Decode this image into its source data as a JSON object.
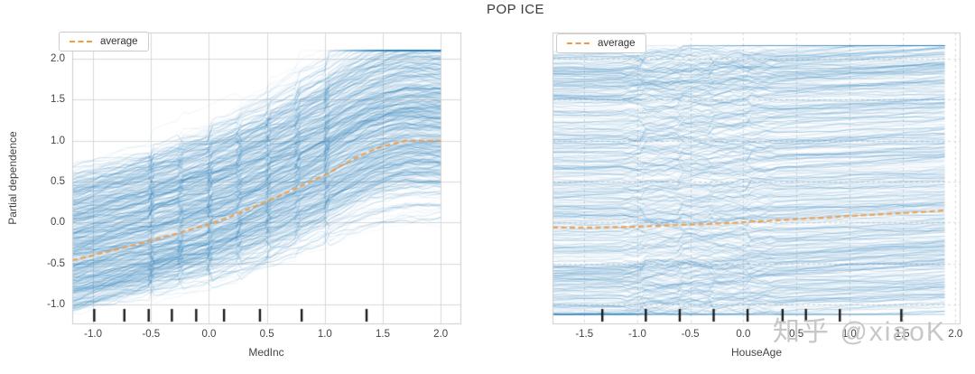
{
  "title": "POP ICE",
  "ylabel": "Partial dependence",
  "watermark": "知乎 @xiaoK",
  "colors": {
    "ice_line": "#1f77b4",
    "average_line": "#ef9c45",
    "grid": "#d9d9d9",
    "spine": "#cccccc",
    "rug": "#1a1a1a",
    "title_text": "#3a3a3a",
    "tick_text": "#444444",
    "watermark_text": "#c7c7c7"
  },
  "chart_data": [
    {
      "type": "line",
      "subtype": "ice-plot",
      "xlabel": "MedInc",
      "legend_label": "average",
      "xlim": [
        -1.18,
        2.17
      ],
      "ylim": [
        -1.23,
        2.32
      ],
      "xticks": [
        -1.0,
        -0.5,
        0.0,
        0.5,
        1.0,
        1.5,
        2.0
      ],
      "xtick_labels": [
        "-1.0",
        "-0.5",
        "0.0",
        "0.5",
        "1.0",
        "1.5",
        "2.0"
      ],
      "yticks": [
        -1.0,
        -0.5,
        0.0,
        0.5,
        1.0,
        1.5,
        2.0
      ],
      "ytick_labels": [
        "-1.0",
        "-0.5",
        "0.0",
        "0.5",
        "1.0",
        "1.5",
        "2.0"
      ],
      "grid_y": [
        -1.0,
        -0.5,
        0.0,
        0.5,
        1.0,
        1.5,
        2.0
      ],
      "grid_style": "solid",
      "n_ice_lines": 520,
      "seed": 7,
      "ice_x_range": [
        -1.18,
        2.0
      ],
      "ice_value_clamp": [
        -1.16,
        2.1
      ],
      "average_series": {
        "x": [
          -1.18,
          -1.0,
          -0.75,
          -0.5,
          -0.25,
          0.0,
          0.2,
          0.4,
          0.6,
          0.8,
          1.0,
          1.2,
          1.4,
          1.55,
          1.7,
          2.0
        ],
        "y": [
          -0.46,
          -0.4,
          -0.31,
          -0.22,
          -0.12,
          -0.02,
          0.08,
          0.2,
          0.32,
          0.45,
          0.58,
          0.74,
          0.88,
          0.95,
          1.0,
          1.0
        ]
      },
      "rug_x": [
        -0.99,
        -0.73,
        -0.52,
        -0.32,
        -0.11,
        0.13,
        0.44,
        0.8,
        1.36
      ],
      "ice_model": {
        "kind": "scaled_average",
        "scale_jitter": 0.33,
        "offset_min": -0.55,
        "offset_range": 1.62,
        "offset_pow": 1.25,
        "walk": 0.05,
        "jump_xs": [
          -0.45,
          -0.2,
          0.05,
          0.3,
          0.55,
          0.8,
          1.05
        ],
        "jump_prob": 0.4,
        "jump_max": 0.18
      }
    },
    {
      "type": "line",
      "subtype": "ice-plot",
      "xlabel": "HouseAge",
      "legend_label": "average",
      "xlim": [
        -1.8,
        2.04
      ],
      "ylim": [
        -1.23,
        2.32
      ],
      "xticks": [
        -1.5,
        -1.0,
        -0.5,
        0.0,
        0.5,
        1.0,
        1.5,
        2.0
      ],
      "xtick_labels": [
        "-1.5",
        "-1.0",
        "-0.5",
        "0.0",
        "0.5",
        "1.0",
        "1.5",
        "2.0"
      ],
      "yticks": [],
      "ytick_labels": [],
      "grid_y": [
        -1.0,
        -0.5,
        0.0,
        0.5,
        1.0,
        1.5,
        2.0
      ],
      "grid_style": "dashed",
      "n_ice_lines": 520,
      "seed": 21,
      "ice_x_range": [
        -1.8,
        1.9
      ],
      "ice_value_clamp": [
        -1.12,
        2.16
      ],
      "average_series": {
        "x": [
          -1.8,
          -1.4,
          -1.0,
          -0.6,
          -0.2,
          0.2,
          0.6,
          1.0,
          1.4,
          1.7,
          1.9
        ],
        "y": [
          -0.06,
          -0.06,
          -0.05,
          -0.03,
          -0.01,
          0.02,
          0.05,
          0.08,
          0.11,
          0.13,
          0.15
        ]
      },
      "rug_x": [
        -1.33,
        -0.92,
        -0.6,
        -0.28,
        0.04,
        0.37,
        0.59,
        0.91,
        1.49
      ],
      "ice_model": {
        "kind": "flat_offset",
        "offset_min": -1.14,
        "offset_range": 3.3,
        "offset_pow": 1.12,
        "trend_max": 1.6,
        "walk": 0.02,
        "bump_range": [
          -1.15,
          0.35
        ],
        "bump_mult": 3.5,
        "jump_xs": [
          -0.9,
          -0.55,
          -0.25,
          0.05
        ],
        "jump_prob": 0.3,
        "jump_max": 0.12
      }
    }
  ]
}
